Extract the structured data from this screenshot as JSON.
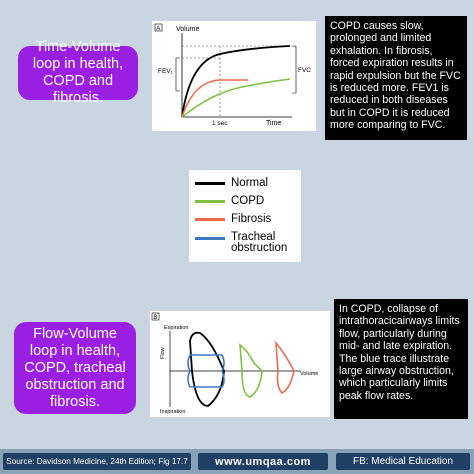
{
  "top_section": {
    "pill_text": "Time-Volume loop in health, COPD and fibrosis.",
    "note": "COPD causes slow, prolonged and limited exhalation. In fibrosis, forced expiration results in rapid expulsion but the FVC is reduced more. FEV1 is reduced in both diseases but in COPD it is reduced more comparing to FVC.",
    "figure": {
      "panel_label": "A",
      "y_axis": "Volume",
      "x_axis": "Time",
      "fev_label": "FEV₁",
      "fvc_label": "FVC",
      "time_marker": "1 sec"
    }
  },
  "legend": {
    "items": [
      {
        "label": "Normal",
        "color": "#000000"
      },
      {
        "label": "COPD",
        "color": "#7dc242"
      },
      {
        "label": "Fibrosis",
        "color": "#f06a4e"
      },
      {
        "label": "Tracheal obstruction",
        "color": "#3a7bbf"
      }
    ]
  },
  "bottom_section": {
    "pill_text": "Flow-Volume loop in health, COPD, tracheal obstruction and fibrosis.",
    "note": "In COPD, collapse of intrathoracicairways limits flow, particularly during mid- and late expiration. The blue trace illustrate large airway obstruction, which particularly limits peak flow rates.",
    "figure": {
      "panel_label": "B",
      "expiration": "Expiration",
      "inspiration": "Inspiration",
      "flow": "Flow",
      "volume": "Volume"
    }
  },
  "footer": {
    "source": "Source: Davidson Medicine, 24th Edition; Fig 17.7",
    "url": "www.umqaa.com",
    "fb": "FB: Medical Education"
  }
}
